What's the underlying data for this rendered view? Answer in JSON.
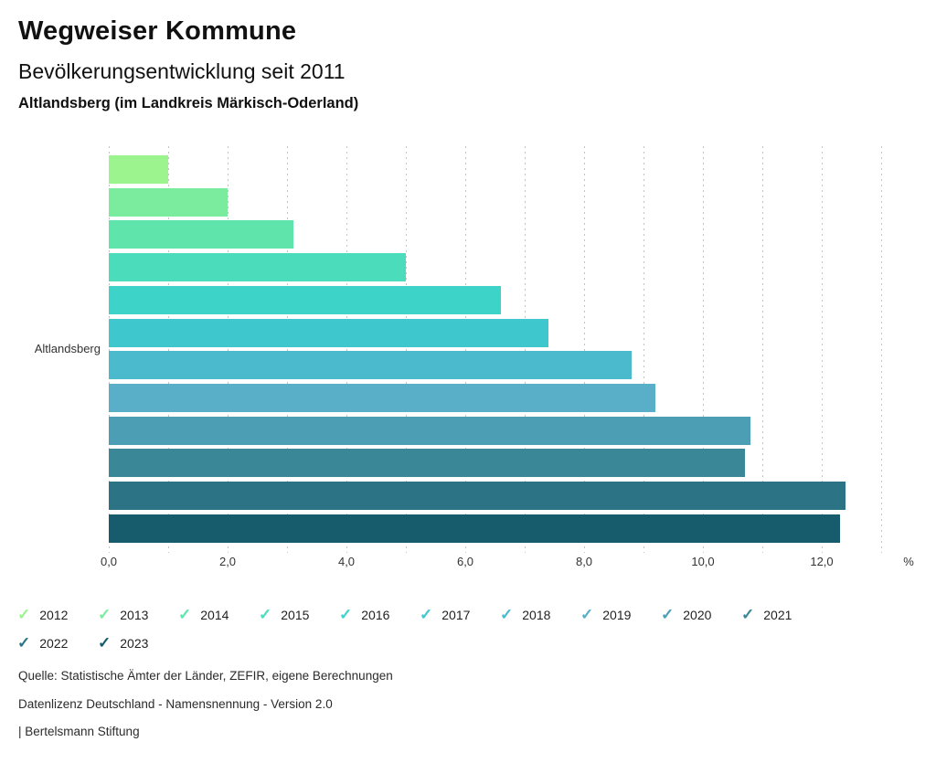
{
  "header": {
    "title": "Wegweiser Kommune",
    "subtitle": "Bevölkerungsentwicklung seit 2011",
    "location": "Altlandsberg (im Landkreis Märkisch-Oderland)"
  },
  "chart_data": {
    "type": "bar",
    "orientation": "horizontal",
    "title": "Bevölkerungsentwicklung seit 2011",
    "category": "Altlandsberg",
    "xlabel": "%",
    "unit": "%",
    "xlim": [
      0,
      13
    ],
    "grid": true,
    "legend_position": "bottom",
    "x_ticks": [
      0,
      2,
      4,
      6,
      8,
      10,
      12
    ],
    "x_tick_labels": [
      "0,0",
      "2,0",
      "4,0",
      "6,0",
      "8,0",
      "10,0",
      "12,0"
    ],
    "axis_unit_label": "%",
    "series": [
      {
        "name": "2012",
        "value": 1.0,
        "color": "#9BF48E"
      },
      {
        "name": "2013",
        "value": 2.0,
        "color": "#7BEC9E"
      },
      {
        "name": "2014",
        "value": 3.1,
        "color": "#5FE5AC"
      },
      {
        "name": "2015",
        "value": 5.0,
        "color": "#4BDDBB"
      },
      {
        "name": "2016",
        "value": 6.6,
        "color": "#3ED3C9"
      },
      {
        "name": "2017",
        "value": 7.4,
        "color": "#3FC7CE"
      },
      {
        "name": "2018",
        "value": 8.8,
        "color": "#4CBACD"
      },
      {
        "name": "2019",
        "value": 9.2,
        "color": "#58AFC7"
      },
      {
        "name": "2020",
        "value": 10.8,
        "color": "#4B9EB4"
      },
      {
        "name": "2021",
        "value": 10.7,
        "color": "#3A8798"
      },
      {
        "name": "2022",
        "value": 12.4,
        "color": "#2C7485"
      },
      {
        "name": "2023",
        "value": 12.3,
        "color": "#175C6C"
      }
    ]
  },
  "legend": {
    "check_icon": "✓"
  },
  "footer": {
    "source": "Quelle: Statistische Ämter der Länder, ZEFIR, eigene Berechnungen",
    "license": "Datenlizenz Deutschland - Namensnennung - Version 2.0",
    "attribution": "| Bertelsmann Stiftung"
  }
}
